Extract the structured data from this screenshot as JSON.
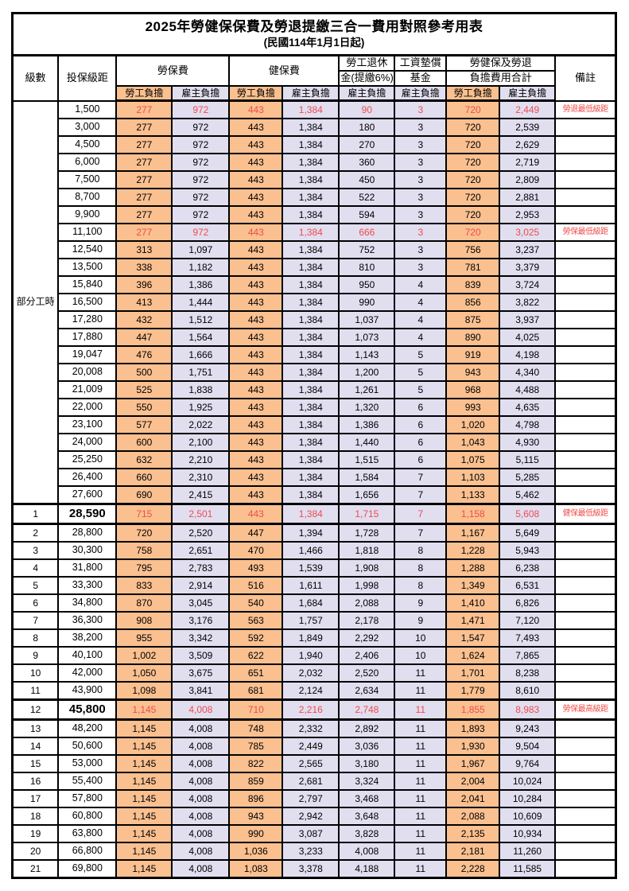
{
  "title": "2025年勞健保保費及勞退提繳三合一費用對照參考用表",
  "subtitle": "(民國114年1月1日起)",
  "colors": {
    "employee_bg": "#FAC090",
    "employer_bg": "#E1DEF0",
    "highlight_text": "#F04B4B",
    "border": "#000000"
  },
  "headers": {
    "level": "級數",
    "salary": "投保級距",
    "labor_fee": "勞保費",
    "health_fee": "健保費",
    "pension_line1": "勞工退休",
    "pension_line2": "金(提繳6%)",
    "wage_fund_line1": "工資墊償",
    "wage_fund_line2": "基金",
    "total_line1": "勞健保及勞退",
    "total_line2": "負擔費用合計",
    "remark": "備註",
    "employee": "勞工負擔",
    "employer": "雇主負擔"
  },
  "table": {
    "part_time_label": "部分工時",
    "part_time_span": 23,
    "rows": [
      {
        "salary": "1,500",
        "values": [
          "277",
          "972",
          "443",
          "1,384",
          "90",
          "3",
          "720",
          "2,449"
        ],
        "remark": "勞退最低級距",
        "red": true,
        "big": false
      },
      {
        "salary": "3,000",
        "values": [
          "277",
          "972",
          "443",
          "1,384",
          "180",
          "3",
          "720",
          "2,539"
        ],
        "remark": "",
        "red": false,
        "big": false
      },
      {
        "salary": "4,500",
        "values": [
          "277",
          "972",
          "443",
          "1,384",
          "270",
          "3",
          "720",
          "2,629"
        ],
        "remark": "",
        "red": false,
        "big": false
      },
      {
        "salary": "6,000",
        "values": [
          "277",
          "972",
          "443",
          "1,384",
          "360",
          "3",
          "720",
          "2,719"
        ],
        "remark": "",
        "red": false,
        "big": false
      },
      {
        "salary": "7,500",
        "values": [
          "277",
          "972",
          "443",
          "1,384",
          "450",
          "3",
          "720",
          "2,809"
        ],
        "remark": "",
        "red": false,
        "big": false
      },
      {
        "salary": "8,700",
        "values": [
          "277",
          "972",
          "443",
          "1,384",
          "522",
          "3",
          "720",
          "2,881"
        ],
        "remark": "",
        "red": false,
        "big": false
      },
      {
        "salary": "9,900",
        "values": [
          "277",
          "972",
          "443",
          "1,384",
          "594",
          "3",
          "720",
          "2,953"
        ],
        "remark": "",
        "red": false,
        "big": false
      },
      {
        "salary": "11,100",
        "values": [
          "277",
          "972",
          "443",
          "1,384",
          "666",
          "3",
          "720",
          "3,025"
        ],
        "remark": "勞保最低級距",
        "red": true,
        "big": false
      },
      {
        "salary": "12,540",
        "values": [
          "313",
          "1,097",
          "443",
          "1,384",
          "752",
          "3",
          "756",
          "3,237"
        ],
        "remark": "",
        "red": false,
        "big": false
      },
      {
        "salary": "13,500",
        "values": [
          "338",
          "1,182",
          "443",
          "1,384",
          "810",
          "3",
          "781",
          "3,379"
        ],
        "remark": "",
        "red": false,
        "big": false
      },
      {
        "salary": "15,840",
        "values": [
          "396",
          "1,386",
          "443",
          "1,384",
          "950",
          "4",
          "839",
          "3,724"
        ],
        "remark": "",
        "red": false,
        "big": false
      },
      {
        "salary": "16,500",
        "values": [
          "413",
          "1,444",
          "443",
          "1,384",
          "990",
          "4",
          "856",
          "3,822"
        ],
        "remark": "",
        "red": false,
        "big": false
      },
      {
        "salary": "17,280",
        "values": [
          "432",
          "1,512",
          "443",
          "1,384",
          "1,037",
          "4",
          "875",
          "3,937"
        ],
        "remark": "",
        "red": false,
        "big": false
      },
      {
        "salary": "17,880",
        "values": [
          "447",
          "1,564",
          "443",
          "1,384",
          "1,073",
          "4",
          "890",
          "4,025"
        ],
        "remark": "",
        "red": false,
        "big": false
      },
      {
        "salary": "19,047",
        "values": [
          "476",
          "1,666",
          "443",
          "1,384",
          "1,143",
          "5",
          "919",
          "4,198"
        ],
        "remark": "",
        "red": false,
        "big": false
      },
      {
        "salary": "20,008",
        "values": [
          "500",
          "1,751",
          "443",
          "1,384",
          "1,200",
          "5",
          "943",
          "4,340"
        ],
        "remark": "",
        "red": false,
        "big": false
      },
      {
        "salary": "21,009",
        "values": [
          "525",
          "1,838",
          "443",
          "1,384",
          "1,261",
          "5",
          "968",
          "4,488"
        ],
        "remark": "",
        "red": false,
        "big": false
      },
      {
        "salary": "22,000",
        "values": [
          "550",
          "1,925",
          "443",
          "1,384",
          "1,320",
          "6",
          "993",
          "4,635"
        ],
        "remark": "",
        "red": false,
        "big": false
      },
      {
        "salary": "23,100",
        "values": [
          "577",
          "2,022",
          "443",
          "1,384",
          "1,386",
          "6",
          "1,020",
          "4,798"
        ],
        "remark": "",
        "red": false,
        "big": false
      },
      {
        "salary": "24,000",
        "values": [
          "600",
          "2,100",
          "443",
          "1,384",
          "1,440",
          "6",
          "1,043",
          "4,930"
        ],
        "remark": "",
        "red": false,
        "big": false
      },
      {
        "salary": "25,250",
        "values": [
          "632",
          "2,210",
          "443",
          "1,384",
          "1,515",
          "6",
          "1,075",
          "5,115"
        ],
        "remark": "",
        "red": false,
        "big": false
      },
      {
        "salary": "26,400",
        "values": [
          "660",
          "2,310",
          "443",
          "1,384",
          "1,584",
          "7",
          "1,103",
          "5,285"
        ],
        "remark": "",
        "red": false,
        "big": false
      },
      {
        "salary": "27,600",
        "values": [
          "690",
          "2,415",
          "443",
          "1,384",
          "1,656",
          "7",
          "1,133",
          "5,462"
        ],
        "remark": "",
        "red": false,
        "big": false
      },
      {
        "level": "1",
        "salary": "28,590",
        "values": [
          "715",
          "2,501",
          "443",
          "1,384",
          "1,715",
          "7",
          "1,158",
          "5,608"
        ],
        "remark": "健保最低級距",
        "red": true,
        "big": true
      },
      {
        "level": "2",
        "salary": "28,800",
        "values": [
          "720",
          "2,520",
          "447",
          "1,394",
          "1,728",
          "7",
          "1,167",
          "5,649"
        ],
        "remark": "",
        "red": false,
        "big": false
      },
      {
        "level": "3",
        "salary": "30,300",
        "values": [
          "758",
          "2,651",
          "470",
          "1,466",
          "1,818",
          "8",
          "1,228",
          "5,943"
        ],
        "remark": "",
        "red": false,
        "big": false
      },
      {
        "level": "4",
        "salary": "31,800",
        "values": [
          "795",
          "2,783",
          "493",
          "1,539",
          "1,908",
          "8",
          "1,288",
          "6,238"
        ],
        "remark": "",
        "red": false,
        "big": false
      },
      {
        "level": "5",
        "salary": "33,300",
        "values": [
          "833",
          "2,914",
          "516",
          "1,611",
          "1,998",
          "8",
          "1,349",
          "6,531"
        ],
        "remark": "",
        "red": false,
        "big": false
      },
      {
        "level": "6",
        "salary": "34,800",
        "values": [
          "870",
          "3,045",
          "540",
          "1,684",
          "2,088",
          "9",
          "1,410",
          "6,826"
        ],
        "remark": "",
        "red": false,
        "big": false
      },
      {
        "level": "7",
        "salary": "36,300",
        "values": [
          "908",
          "3,176",
          "563",
          "1,757",
          "2,178",
          "9",
          "1,471",
          "7,120"
        ],
        "remark": "",
        "red": false,
        "big": false
      },
      {
        "level": "8",
        "salary": "38,200",
        "values": [
          "955",
          "3,342",
          "592",
          "1,849",
          "2,292",
          "10",
          "1,547",
          "7,493"
        ],
        "remark": "",
        "red": false,
        "big": false
      },
      {
        "level": "9",
        "salary": "40,100",
        "values": [
          "1,002",
          "3,509",
          "622",
          "1,940",
          "2,406",
          "10",
          "1,624",
          "7,865"
        ],
        "remark": "",
        "red": false,
        "big": false
      },
      {
        "level": "10",
        "salary": "42,000",
        "values": [
          "1,050",
          "3,675",
          "651",
          "2,032",
          "2,520",
          "11",
          "1,701",
          "8,238"
        ],
        "remark": "",
        "red": false,
        "big": false
      },
      {
        "level": "11",
        "salary": "43,900",
        "values": [
          "1,098",
          "3,841",
          "681",
          "2,124",
          "2,634",
          "11",
          "1,779",
          "8,610"
        ],
        "remark": "",
        "red": false,
        "big": false
      },
      {
        "level": "12",
        "salary": "45,800",
        "values": [
          "1,145",
          "4,008",
          "710",
          "2,216",
          "2,748",
          "11",
          "1,855",
          "8,983"
        ],
        "remark": "勞保最高級距",
        "red": true,
        "big": true
      },
      {
        "level": "13",
        "salary": "48,200",
        "values": [
          "1,145",
          "4,008",
          "748",
          "2,332",
          "2,892",
          "11",
          "1,893",
          "9,243"
        ],
        "remark": "",
        "red": false,
        "big": false
      },
      {
        "level": "14",
        "salary": "50,600",
        "values": [
          "1,145",
          "4,008",
          "785",
          "2,449",
          "3,036",
          "11",
          "1,930",
          "9,504"
        ],
        "remark": "",
        "red": false,
        "big": false
      },
      {
        "level": "15",
        "salary": "53,000",
        "values": [
          "1,145",
          "4,008",
          "822",
          "2,565",
          "3,180",
          "11",
          "1,967",
          "9,764"
        ],
        "remark": "",
        "red": false,
        "big": false
      },
      {
        "level": "16",
        "salary": "55,400",
        "values": [
          "1,145",
          "4,008",
          "859",
          "2,681",
          "3,324",
          "11",
          "2,004",
          "10,024"
        ],
        "remark": "",
        "red": false,
        "big": false
      },
      {
        "level": "17",
        "salary": "57,800",
        "values": [
          "1,145",
          "4,008",
          "896",
          "2,797",
          "3,468",
          "11",
          "2,041",
          "10,284"
        ],
        "remark": "",
        "red": false,
        "big": false
      },
      {
        "level": "18",
        "salary": "60,800",
        "values": [
          "1,145",
          "4,008",
          "943",
          "2,942",
          "3,648",
          "11",
          "2,088",
          "10,609"
        ],
        "remark": "",
        "red": false,
        "big": false
      },
      {
        "level": "19",
        "salary": "63,800",
        "values": [
          "1,145",
          "4,008",
          "990",
          "3,087",
          "3,828",
          "11",
          "2,135",
          "10,934"
        ],
        "remark": "",
        "red": false,
        "big": false
      },
      {
        "level": "20",
        "salary": "66,800",
        "values": [
          "1,145",
          "4,008",
          "1,036",
          "3,233",
          "4,008",
          "11",
          "2,181",
          "11,260"
        ],
        "remark": "",
        "red": false,
        "big": false
      },
      {
        "level": "21",
        "salary": "69,800",
        "values": [
          "1,145",
          "4,008",
          "1,083",
          "3,378",
          "4,188",
          "11",
          "2,228",
          "11,585"
        ],
        "remark": "",
        "red": false,
        "big": false
      }
    ]
  }
}
